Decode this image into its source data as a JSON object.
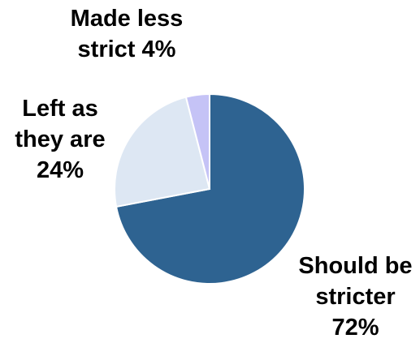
{
  "chart_data": {
    "type": "pie",
    "title": "",
    "start_angle_deg": 0,
    "direction": "clockwise",
    "slices": [
      {
        "label_lines": [
          "Should be",
          "stricter",
          "72%"
        ],
        "label": "Should be stricter",
        "value": 72,
        "color": "#2e6391"
      },
      {
        "label_lines": [
          "Left as",
          "they are",
          "24%"
        ],
        "label": "Left as they are",
        "value": 24,
        "color": "#dde7f3"
      },
      {
        "label_lines": [
          "Made less",
          "strict 4%"
        ],
        "label": "Made less strict",
        "value": 4,
        "color": "#c5c3f6"
      }
    ]
  }
}
